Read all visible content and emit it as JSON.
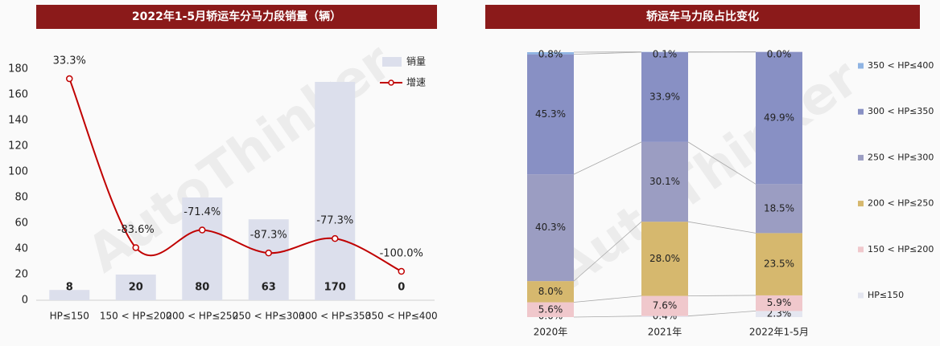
{
  "watermark": "AutoThinker",
  "chart_data": [
    {
      "type": "bar-line",
      "title": "2022年1-5月轿运车分马力段销量（辆）",
      "categories": [
        "HP≤150",
        "150 < HP≤200",
        "200 < HP≤250",
        "250 < HP≤300",
        "300 < HP≤350",
        "350 < HP≤400"
      ],
      "series": [
        {
          "name": "销量",
          "color": "#dcdfec",
          "values": [
            8,
            20,
            80,
            63,
            170,
            0
          ]
        },
        {
          "name": "增速",
          "color": "#c00000",
          "axis": "y2",
          "values": [
            33.3,
            -83.6,
            -71.4,
            -87.3,
            -77.3,
            -100.0
          ],
          "value_labels": [
            "33.3%",
            "-83.6%",
            "-71.4%",
            "-87.3%",
            "-77.3%",
            "-100.0%"
          ]
        }
      ],
      "ylim": [
        0,
        180
      ],
      "yticks": [
        0,
        20,
        40,
        60,
        80,
        100,
        120,
        140,
        160,
        180
      ],
      "y2lim": [
        -120,
        40
      ],
      "legend": "top-right"
    },
    {
      "type": "stacked-bar",
      "title": "轿运车马力段占比变化",
      "categories": [
        "2020年",
        "2021年",
        "2022年1-5月"
      ],
      "series": [
        {
          "name": "HP≤150",
          "color": "#e4e6f0",
          "values": [
            0.0,
            0.4,
            2.3
          ],
          "value_labels": [
            "0.0%",
            "0.4%",
            "2.3%"
          ]
        },
        {
          "name": "150 < HP≤200",
          "color": "#f0c8cc",
          "values": [
            5.6,
            7.6,
            5.9
          ],
          "value_labels": [
            "5.6%",
            "7.6%",
            "5.9%"
          ]
        },
        {
          "name": "200 < HP≤250",
          "color": "#d6b86e",
          "values": [
            8.0,
            28.0,
            23.5
          ],
          "value_labels": [
            "8.0%",
            "28.0%",
            "23.5%"
          ]
        },
        {
          "name": "250 < HP≤300",
          "color": "#9b9dc2",
          "values": [
            40.3,
            30.1,
            18.5
          ],
          "value_labels": [
            "40.3%",
            "30.1%",
            "18.5%"
          ]
        },
        {
          "name": "300 < HP≤350",
          "color": "#8890c4",
          "values": [
            45.3,
            33.9,
            49.9
          ],
          "value_labels": [
            "45.3%",
            "33.9%",
            "49.9%"
          ]
        },
        {
          "name": "350 < HP≤400",
          "color": "#8fb4e3",
          "values": [
            0.8,
            0.1,
            0.0
          ],
          "value_labels": [
            "0.8%",
            "0.1%",
            "0.0%"
          ]
        }
      ],
      "ylim": [
        0,
        100
      ],
      "legend": "right"
    }
  ]
}
